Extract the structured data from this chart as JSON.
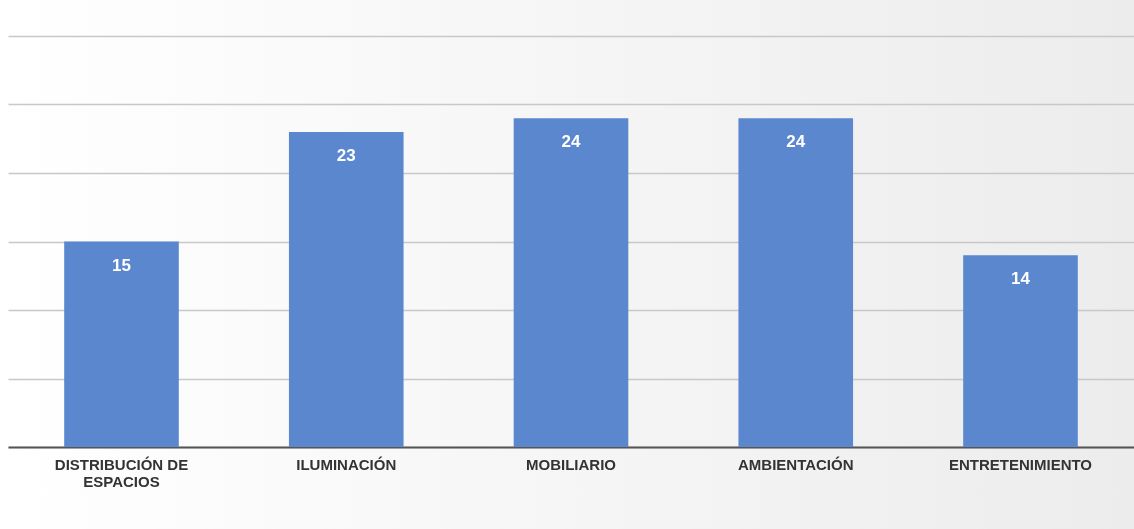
{
  "chart_data": {
    "type": "bar",
    "categories": [
      "DISTRIBUCIÓN DE ESPACIOS",
      "ILUMINACIÓN",
      "MOBILIARIO",
      "AMBIENTACIÓN",
      "ENTRETENIMIENTO"
    ],
    "values": [
      15,
      23,
      24,
      24,
      14
    ],
    "color": "#5b87cf",
    "data_labels": true,
    "grid": "y",
    "tick_labels": "x",
    "ylim": [
      0,
      30
    ],
    "yticks": [
      {
        "value": 0,
        "label": null
      },
      {
        "value": 5,
        "label": null
      },
      {
        "value": 10,
        "label": null
      },
      {
        "value": 15,
        "label": null
      },
      {
        "value": 20,
        "label": null
      },
      {
        "value": 25,
        "label": null
      },
      {
        "value": 30,
        "label": null
      }
    ]
  }
}
